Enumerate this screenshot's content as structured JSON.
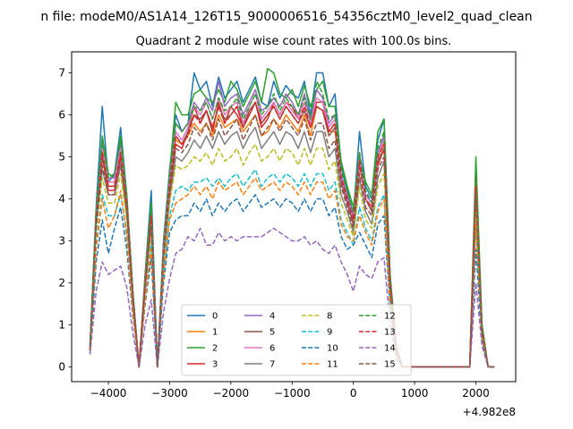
{
  "chart_data": {
    "type": "line",
    "suptitle": "n file: modeM0/AS1A14_126T15_9000006516_54356cztM0_level2_quad_clean",
    "title": "Quadrant 2 module wise count rates with 100.0s bins.",
    "xlabel": "",
    "ylabel": "",
    "x_offset_text": "+4.982e8",
    "xlim": [
      -4600,
      2650
    ],
    "ylim": [
      -0.35,
      7.5
    ],
    "xticks": [
      -4000,
      -3000,
      -2000,
      -1000,
      0,
      1000,
      2000
    ],
    "xtick_labels": [
      "−4000",
      "−3000",
      "−2000",
      "−1000",
      "0",
      "1000",
      "2000"
    ],
    "yticks": [
      0,
      1,
      2,
      3,
      4,
      5,
      6,
      7
    ],
    "ytick_labels": [
      "0",
      "1",
      "2",
      "3",
      "4",
      "5",
      "6",
      "7"
    ],
    "grid": false,
    "legend_position": "lower-center",
    "legend_columns": 4,
    "x": [
      -4300,
      -4200,
      -4100,
      -4000,
      -3900,
      -3800,
      -3700,
      -3600,
      -3500,
      -3400,
      -3300,
      -3200,
      -3100,
      -3000,
      -2900,
      -2800,
      -2700,
      -2600,
      -2500,
      -2400,
      -2300,
      -2200,
      -2100,
      -2000,
      -1900,
      -1800,
      -1700,
      -1600,
      -1500,
      -1400,
      -1300,
      -1200,
      -1100,
      -1000,
      -900,
      -800,
      -700,
      -600,
      -500,
      -400,
      -300,
      -200,
      -100,
      0,
      100,
      200,
      300,
      400,
      500,
      600,
      700,
      800,
      900,
      1000,
      1100,
      1200,
      1300,
      1400,
      1500,
      1600,
      1700,
      1800,
      1900,
      2000,
      2100,
      2200,
      2300
    ],
    "series": [
      {
        "name": "0",
        "color": "#1f77b4",
        "dash": "solid",
        "values": [
          0.5,
          3.8,
          6.2,
          4.4,
          4.6,
          5.7,
          4.1,
          1.8,
          0.0,
          2.2,
          4.2,
          0.0,
          3.0,
          4.7,
          6.0,
          5.6,
          5.8,
          7.0,
          6.6,
          6.8,
          6.2,
          6.9,
          6.4,
          6.6,
          6.8,
          6.3,
          6.6,
          6.9,
          6.3,
          6.2,
          6.8,
          6.4,
          6.7,
          6.5,
          6.4,
          6.8,
          6.0,
          7.0,
          7.0,
          6.2,
          6.5,
          4.8,
          4.2,
          3.6,
          5.6,
          4.3,
          4.0,
          5.4,
          5.9,
          2.1,
          0.5,
          0.0,
          0.0,
          0.0,
          0.0,
          0.0,
          0.0,
          0.0,
          0.0,
          0.0,
          0.0,
          0.0,
          0.0,
          4.6,
          1.0,
          0.0,
          0.0
        ]
      },
      {
        "name": "1",
        "color": "#ff7f0e",
        "dash": "solid",
        "values": [
          0.4,
          3.6,
          5.2,
          4.4,
          4.4,
          5.0,
          3.9,
          1.7,
          0.0,
          2.1,
          3.6,
          0.0,
          2.8,
          4.4,
          5.4,
          5.3,
          5.5,
          5.8,
          5.6,
          5.8,
          5.5,
          6.0,
          5.7,
          5.8,
          5.9,
          5.6,
          5.8,
          6.0,
          5.5,
          5.6,
          5.9,
          5.7,
          6.0,
          5.8,
          5.6,
          6.0,
          5.5,
          6.2,
          6.1,
          5.6,
          5.6,
          4.5,
          4.0,
          3.4,
          5.1,
          4.0,
          3.7,
          5.0,
          5.3,
          1.9,
          0.4,
          0.0,
          0.0,
          0.0,
          0.0,
          0.0,
          0.0,
          0.0,
          0.0,
          0.0,
          0.0,
          0.0,
          0.0,
          4.3,
          0.9,
          0.0,
          0.0
        ]
      },
      {
        "name": "2",
        "color": "#2ca02c",
        "dash": "solid",
        "values": [
          0.5,
          3.7,
          5.5,
          4.6,
          4.5,
          5.5,
          4.1,
          1.8,
          0.0,
          2.2,
          3.9,
          0.0,
          2.9,
          4.6,
          6.3,
          6.0,
          6.0,
          6.5,
          6.6,
          6.4,
          6.3,
          6.6,
          6.3,
          6.8,
          6.6,
          6.2,
          6.5,
          6.8,
          6.3,
          7.1,
          7.0,
          6.5,
          6.4,
          6.6,
          6.2,
          6.7,
          6.2,
          6.6,
          6.8,
          6.2,
          6.2,
          4.9,
          4.3,
          3.8,
          5.0,
          4.4,
          4.1,
          5.6,
          5.9,
          2.2,
          0.5,
          0.0,
          0.0,
          0.0,
          0.0,
          0.0,
          0.0,
          0.0,
          0.0,
          0.0,
          0.0,
          0.0,
          0.0,
          5.0,
          1.0,
          0.0,
          0.0
        ]
      },
      {
        "name": "3",
        "color": "#d62728",
        "dash": "solid",
        "values": [
          0.4,
          3.4,
          5.0,
          4.2,
          4.2,
          5.0,
          3.8,
          1.6,
          0.0,
          2.0,
          3.5,
          0.0,
          2.7,
          4.2,
          5.3,
          5.2,
          5.6,
          6.2,
          5.8,
          6.1,
          5.6,
          6.3,
          5.8,
          6.2,
          6.0,
          5.7,
          6.0,
          6.3,
          5.7,
          5.9,
          6.3,
          6.0,
          6.3,
          6.2,
          5.9,
          6.3,
          5.8,
          6.3,
          6.3,
          5.6,
          5.8,
          4.5,
          4.0,
          3.5,
          4.9,
          4.0,
          3.8,
          4.8,
          5.2,
          2.0,
          0.4,
          0.0,
          0.0,
          0.0,
          0.0,
          0.0,
          0.0,
          0.0,
          0.0,
          0.0,
          0.0,
          0.0,
          0.0,
          4.5,
          0.9,
          0.0,
          0.0
        ]
      },
      {
        "name": "4",
        "color": "#9467bd",
        "dash": "solid",
        "values": [
          0.5,
          3.6,
          5.3,
          4.5,
          4.5,
          5.3,
          4.0,
          1.7,
          0.0,
          2.1,
          3.7,
          0.0,
          2.8,
          4.5,
          5.8,
          5.6,
          5.8,
          6.3,
          6.1,
          6.4,
          6.1,
          6.8,
          6.2,
          6.4,
          6.5,
          6.0,
          6.3,
          6.6,
          6.1,
          6.2,
          6.4,
          6.2,
          6.5,
          6.3,
          6.0,
          6.5,
          5.9,
          6.6,
          6.4,
          5.8,
          6.0,
          4.6,
          4.1,
          3.6,
          5.0,
          4.1,
          3.9,
          5.1,
          5.5,
          2.1,
          0.5,
          0.0,
          0.0,
          0.0,
          0.0,
          0.0,
          0.0,
          0.0,
          0.0,
          0.0,
          0.0,
          0.0,
          0.0,
          4.4,
          0.9,
          0.0,
          0.0
        ]
      },
      {
        "name": "5",
        "color": "#8c564b",
        "dash": "solid",
        "values": [
          0.4,
          3.5,
          5.0,
          4.3,
          4.3,
          5.1,
          3.8,
          1.6,
          0.0,
          2.0,
          3.6,
          0.0,
          2.8,
          4.3,
          5.5,
          5.3,
          5.6,
          6.0,
          5.9,
          6.1,
          5.7,
          6.2,
          5.9,
          6.0,
          6.2,
          5.7,
          6.1,
          6.3,
          5.8,
          6.0,
          6.2,
          5.9,
          6.2,
          6.0,
          5.8,
          6.1,
          5.7,
          6.2,
          6.1,
          5.5,
          5.7,
          4.4,
          3.9,
          3.4,
          4.8,
          4.0,
          3.7,
          4.9,
          5.2,
          2.0,
          0.4,
          0.0,
          0.0,
          0.0,
          0.0,
          0.0,
          0.0,
          0.0,
          0.0,
          0.0,
          0.0,
          0.0,
          0.0,
          4.3,
          0.9,
          0.0,
          0.0
        ]
      },
      {
        "name": "6",
        "color": "#e377c2",
        "dash": "solid",
        "values": [
          0.5,
          3.6,
          5.2,
          4.4,
          4.4,
          5.2,
          3.9,
          1.7,
          0.0,
          2.1,
          3.6,
          0.0,
          2.8,
          4.4,
          5.6,
          5.4,
          5.7,
          6.2,
          6.0,
          6.3,
          5.9,
          6.4,
          6.0,
          6.2,
          6.3,
          5.8,
          6.2,
          6.5,
          5.9,
          6.1,
          6.3,
          6.0,
          6.3,
          6.1,
          5.9,
          6.3,
          5.8,
          6.4,
          6.3,
          5.7,
          5.9,
          4.5,
          4.0,
          3.5,
          4.9,
          4.0,
          3.8,
          5.0,
          5.4,
          2.0,
          0.4,
          0.0,
          0.0,
          0.0,
          0.0,
          0.0,
          0.0,
          0.0,
          0.0,
          0.0,
          0.0,
          0.0,
          0.0,
          4.4,
          0.9,
          0.0,
          0.0
        ]
      },
      {
        "name": "7",
        "color": "#7f7f7f",
        "dash": "solid",
        "values": [
          0.4,
          3.4,
          4.7,
          4.1,
          4.1,
          4.8,
          3.6,
          1.6,
          0.0,
          1.9,
          3.3,
          0.0,
          2.6,
          4.0,
          5.0,
          4.9,
          5.1,
          5.4,
          5.2,
          5.5,
          5.2,
          5.6,
          5.3,
          5.5,
          5.6,
          5.2,
          5.5,
          5.7,
          5.2,
          5.4,
          5.6,
          5.3,
          5.6,
          5.5,
          5.2,
          5.6,
          5.1,
          5.6,
          5.6,
          5.0,
          5.2,
          4.1,
          3.7,
          3.2,
          4.5,
          3.7,
          3.4,
          4.5,
          4.9,
          1.8,
          0.4,
          0.0,
          0.0,
          0.0,
          0.0,
          0.0,
          0.0,
          0.0,
          0.0,
          0.0,
          0.0,
          0.0,
          0.0,
          4.0,
          0.8,
          0.0,
          0.0
        ]
      },
      {
        "name": "8",
        "color": "#bcbd22",
        "dash": "dashed",
        "values": [
          0.4,
          3.2,
          4.5,
          3.9,
          3.9,
          4.6,
          3.5,
          1.5,
          0.0,
          1.9,
          3.2,
          0.0,
          2.5,
          3.9,
          4.8,
          4.7,
          4.8,
          5.0,
          4.9,
          5.1,
          4.8,
          5.2,
          4.9,
          5.0,
          5.2,
          4.8,
          5.1,
          5.3,
          4.9,
          5.0,
          5.2,
          4.9,
          5.2,
          5.1,
          4.8,
          5.2,
          4.8,
          5.2,
          5.2,
          4.7,
          4.9,
          3.9,
          3.5,
          3.1,
          4.3,
          3.5,
          3.3,
          4.3,
          4.6,
          1.7,
          0.4,
          0.0,
          0.0,
          0.0,
          0.0,
          0.0,
          0.0,
          0.0,
          0.0,
          0.0,
          0.0,
          0.0,
          0.0,
          3.8,
          0.8,
          0.0,
          0.0
        ]
      },
      {
        "name": "9",
        "color": "#17becf",
        "dash": "dashed",
        "values": [
          0.4,
          2.9,
          4.1,
          3.6,
          3.6,
          4.1,
          3.2,
          1.4,
          0.0,
          1.7,
          2.9,
          0.0,
          2.3,
          3.6,
          4.2,
          4.3,
          4.2,
          4.4,
          4.4,
          4.5,
          4.3,
          4.5,
          4.3,
          4.5,
          4.6,
          4.3,
          4.5,
          4.7,
          4.3,
          4.5,
          4.6,
          4.4,
          4.6,
          4.5,
          4.3,
          4.6,
          4.3,
          4.6,
          4.6,
          4.2,
          4.4,
          3.5,
          3.2,
          2.9,
          3.8,
          3.3,
          3.0,
          3.8,
          4.1,
          1.6,
          0.3,
          0.0,
          0.0,
          0.0,
          0.0,
          0.0,
          0.0,
          0.0,
          0.0,
          0.0,
          0.0,
          0.0,
          0.0,
          3.4,
          0.7,
          0.0,
          0.0
        ]
      },
      {
        "name": "10",
        "color": "#1f77b4",
        "dash": "dashed",
        "values": [
          0.3,
          2.5,
          3.5,
          2.7,
          3.3,
          3.8,
          2.8,
          1.2,
          0.0,
          1.5,
          2.6,
          0.0,
          2.0,
          3.2,
          3.5,
          3.6,
          3.6,
          3.9,
          3.7,
          4.0,
          3.6,
          3.9,
          3.7,
          3.9,
          4.0,
          3.7,
          3.9,
          4.1,
          3.8,
          3.9,
          4.0,
          3.8,
          4.0,
          3.9,
          3.7,
          4.0,
          3.7,
          4.0,
          4.0,
          3.6,
          3.8,
          3.1,
          2.8,
          2.9,
          3.2,
          2.9,
          2.6,
          3.4,
          3.6,
          1.4,
          0.3,
          0.0,
          0.0,
          0.0,
          0.0,
          0.0,
          0.0,
          0.0,
          0.0,
          0.0,
          0.0,
          0.0,
          0.0,
          2.8,
          0.6,
          0.0,
          0.0
        ]
      },
      {
        "name": "11",
        "color": "#ff7f0e",
        "dash": "dashed",
        "values": [
          0.4,
          2.8,
          4.0,
          3.3,
          3.6,
          4.2,
          3.1,
          1.3,
          0.0,
          1.6,
          2.8,
          0.0,
          2.2,
          3.5,
          3.9,
          4.0,
          4.1,
          4.3,
          4.1,
          4.3,
          4.0,
          4.4,
          4.2,
          4.3,
          4.4,
          4.1,
          4.3,
          4.5,
          4.2,
          4.3,
          4.4,
          4.2,
          4.4,
          4.3,
          4.1,
          4.4,
          4.1,
          4.4,
          4.4,
          4.0,
          4.2,
          3.4,
          3.1,
          3.0,
          3.6,
          3.2,
          2.9,
          3.7,
          4.0,
          1.5,
          0.3,
          0.0,
          0.0,
          0.0,
          0.0,
          0.0,
          0.0,
          0.0,
          0.0,
          0.0,
          0.0,
          0.0,
          0.0,
          3.4,
          0.7,
          0.0,
          0.0
        ]
      },
      {
        "name": "12",
        "color": "#2ca02c",
        "dash": "dashed",
        "values": [
          0.5,
          3.6,
          5.4,
          4.5,
          4.6,
          5.4,
          4.0,
          1.7,
          0.0,
          2.1,
          3.8,
          0.0,
          2.8,
          4.5,
          5.8,
          5.6,
          5.8,
          6.2,
          6.1,
          6.3,
          5.9,
          6.4,
          6.1,
          6.2,
          6.4,
          5.9,
          6.2,
          6.5,
          6.0,
          6.2,
          6.5,
          6.1,
          6.4,
          6.2,
          6.0,
          6.4,
          5.9,
          6.8,
          6.5,
          5.9,
          6.0,
          4.7,
          4.2,
          3.7,
          5.1,
          4.2,
          3.9,
          5.2,
          5.6,
          2.1,
          0.5,
          0.0,
          0.0,
          0.0,
          0.0,
          0.0,
          0.0,
          0.0,
          0.0,
          0.0,
          0.0,
          0.0,
          0.0,
          4.5,
          0.9,
          0.0,
          0.0
        ]
      },
      {
        "name": "13",
        "color": "#d62728",
        "dash": "dashed",
        "values": [
          0.4,
          3.5,
          5.1,
          4.3,
          4.3,
          5.1,
          3.9,
          1.6,
          0.0,
          2.0,
          3.6,
          0.0,
          2.7,
          4.3,
          5.5,
          5.3,
          5.5,
          6.0,
          5.8,
          6.1,
          5.7,
          6.2,
          5.8,
          6.0,
          6.2,
          5.7,
          6.0,
          6.3,
          5.8,
          6.0,
          6.2,
          5.9,
          6.2,
          6.0,
          5.8,
          6.2,
          5.7,
          6.2,
          6.1,
          5.6,
          5.8,
          4.5,
          4.0,
          3.5,
          4.9,
          4.0,
          3.8,
          5.0,
          5.3,
          2.0,
          0.4,
          0.0,
          0.0,
          0.0,
          0.0,
          0.0,
          0.0,
          0.0,
          0.0,
          0.0,
          0.0,
          0.0,
          0.0,
          4.3,
          0.9,
          0.0,
          0.0
        ]
      },
      {
        "name": "14",
        "color": "#9467bd",
        "dash": "dashed",
        "values": [
          0.3,
          1.8,
          2.5,
          2.2,
          2.3,
          2.4,
          1.9,
          0.8,
          0.0,
          1.0,
          1.6,
          0.0,
          1.3,
          2.1,
          2.7,
          2.8,
          3.1,
          3.0,
          3.3,
          2.9,
          2.9,
          3.2,
          3.0,
          3.1,
          3.0,
          3.1,
          3.1,
          3.1,
          3.1,
          3.2,
          3.3,
          3.2,
          3.1,
          3.0,
          3.0,
          3.1,
          2.9,
          3.0,
          2.8,
          2.7,
          2.9,
          2.5,
          2.2,
          1.8,
          2.4,
          2.2,
          2.1,
          2.5,
          2.6,
          1.0,
          0.2,
          0.0,
          0.0,
          0.0,
          0.0,
          0.0,
          0.0,
          0.0,
          0.0,
          0.0,
          0.0,
          0.0,
          0.0,
          2.0,
          0.5,
          0.0,
          0.0
        ]
      },
      {
        "name": "15",
        "color": "#8c564b",
        "dash": "dashed",
        "values": [
          0.4,
          3.3,
          4.8,
          4.1,
          4.1,
          4.9,
          3.7,
          1.6,
          0.0,
          1.9,
          3.4,
          0.0,
          2.6,
          4.1,
          5.2,
          5.1,
          5.3,
          5.7,
          5.5,
          5.8,
          5.4,
          5.9,
          5.5,
          5.7,
          5.9,
          5.4,
          5.7,
          6.0,
          5.5,
          5.7,
          5.9,
          5.6,
          5.9,
          5.7,
          5.5,
          5.9,
          5.4,
          5.8,
          5.8,
          5.2,
          5.4,
          4.3,
          3.8,
          3.3,
          4.6,
          3.8,
          3.6,
          4.7,
          5.0,
          1.9,
          0.4,
          0.0,
          0.0,
          0.0,
          0.0,
          0.0,
          0.0,
          0.0,
          0.0,
          0.0,
          0.0,
          0.0,
          0.0,
          4.1,
          0.8,
          0.0,
          0.0
        ]
      }
    ]
  }
}
